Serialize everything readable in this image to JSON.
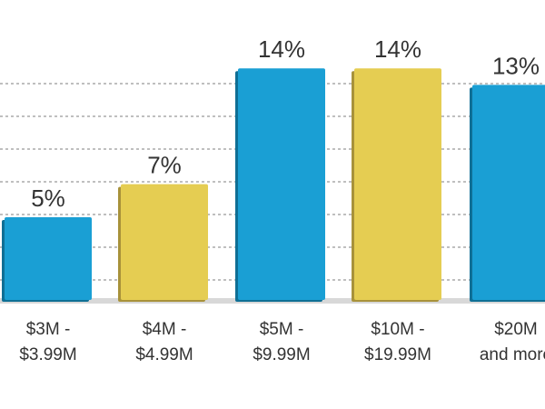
{
  "chart_data": {
    "type": "bar",
    "categories": [
      [
        "$3M -",
        "$3.99M"
      ],
      [
        "$4M -",
        "$4.99M"
      ],
      [
        "$5M -",
        "$9.99M"
      ],
      [
        "$10M -",
        "$19.99M"
      ],
      [
        "$20M",
        "and more"
      ]
    ],
    "values": [
      5,
      7,
      14,
      14,
      13
    ],
    "value_labels": [
      "5%",
      "7%",
      "14%",
      "14%",
      "13%"
    ],
    "colors": [
      "#1a9fd4",
      "#e5cd52",
      "#1a9fd4",
      "#e5cd52",
      "#1a9fd4"
    ],
    "shadow_colors": [
      "#0f6f95",
      "#a8923a",
      "#0f6f95",
      "#a8923a",
      "#0f6f95"
    ],
    "ylim": [
      0,
      16
    ],
    "grid": true,
    "title": "",
    "xlabel": "",
    "ylabel": ""
  }
}
